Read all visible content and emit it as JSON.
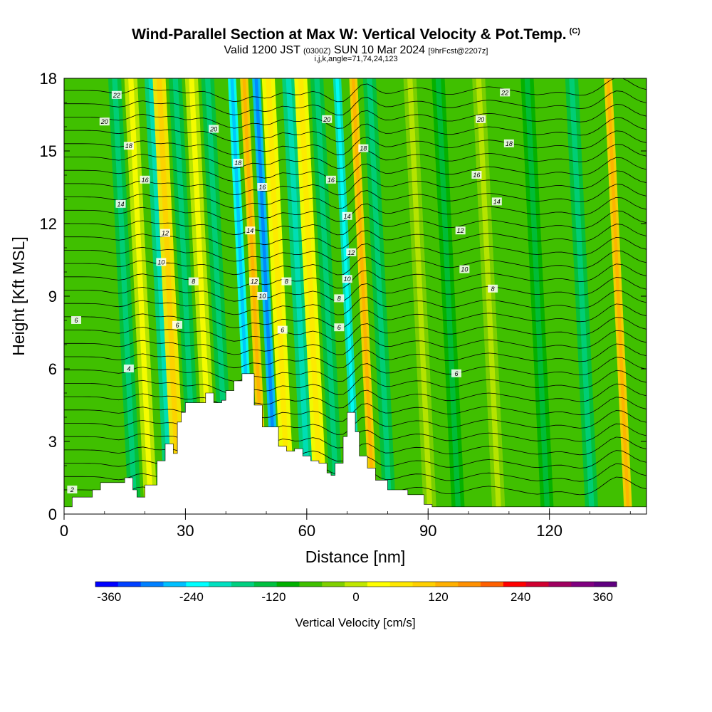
{
  "chart_data": {
    "type": "heatmap",
    "title": "Wind-Parallel Section at Max W: Vertical Velocity & Pot.Temp.",
    "title_mark": "(C)",
    "subtitle_main": "Valid 1200 JST",
    "subtitle_utc": "(0300Z)",
    "subtitle_date": "SUN 10 Mar 2024",
    "subtitle_fcst": "[9hrFcst@2207z]",
    "subsubtitle": "i,j,k,angle=71,74,24,123",
    "xlabel": "Distance [nm]",
    "ylabel": "Height [Kft MSL]",
    "xlim": [
      0,
      144
    ],
    "ylim": [
      0,
      18
    ],
    "xticks": [
      "0",
      "30",
      "60",
      "90",
      "120"
    ],
    "yticks": [
      "0",
      "3",
      "6",
      "9",
      "12",
      "15",
      "18"
    ],
    "colorbar": {
      "label": "Vertical Velocity [cm/s]",
      "min": -380,
      "max": 380,
      "step": 40,
      "tick_labels": [
        "-360",
        "-240",
        "-120",
        "0",
        "120",
        "240",
        "360"
      ],
      "colors": [
        "#0000ff",
        "#0040ff",
        "#0080ff",
        "#00c0ff",
        "#00ffff",
        "#00e0c0",
        "#00d080",
        "#00c040",
        "#00b000",
        "#40c000",
        "#80d000",
        "#c0e800",
        "#ffff00",
        "#ffe800",
        "#ffd000",
        "#ffb000",
        "#ff9000",
        "#ff6000",
        "#ff0000",
        "#d00030",
        "#a00060",
        "#800080",
        "#600080"
      ]
    },
    "vertical_velocity_bands_cms": [
      {
        "x_nm": 15,
        "w": -70
      },
      {
        "x_nm": 19,
        "w": 90
      },
      {
        "x_nm": 24,
        "w": -120
      },
      {
        "x_nm": 26,
        "w": 140
      },
      {
        "x_nm": 30,
        "w": -100
      },
      {
        "x_nm": 34,
        "w": 60
      },
      {
        "x_nm": 38,
        "w": -80
      },
      {
        "x_nm": 44,
        "w": -200
      },
      {
        "x_nm": 47,
        "w": 180
      },
      {
        "x_nm": 50,
        "w": -260
      },
      {
        "x_nm": 53,
        "w": 120
      },
      {
        "x_nm": 58,
        "w": -140
      },
      {
        "x_nm": 61,
        "w": 100
      },
      {
        "x_nm": 65,
        "w": -80
      },
      {
        "x_nm": 70,
        "w": -180
      },
      {
        "x_nm": 74,
        "w": 200
      },
      {
        "x_nm": 78,
        "w": -90
      },
      {
        "x_nm": 88,
        "w": 40
      },
      {
        "x_nm": 95,
        "w": -60
      },
      {
        "x_nm": 105,
        "w": 50
      },
      {
        "x_nm": 117,
        "w": -60
      },
      {
        "x_nm": 128,
        "w": -70
      },
      {
        "x_nm": 137,
        "w": 180
      }
    ],
    "terrain_kft": {
      "x": [
        0,
        2,
        7,
        9,
        11,
        15,
        17,
        18,
        20,
        23,
        25,
        27,
        28,
        29,
        30,
        32,
        35,
        37,
        39,
        40,
        42,
        44,
        45,
        47,
        49,
        53,
        55,
        57,
        59,
        61,
        63,
        65,
        66,
        67,
        69,
        70,
        71,
        72,
        73,
        75,
        77,
        80,
        85,
        89,
        91,
        144
      ],
      "y": [
        0.3,
        0.7,
        1.0,
        1.3,
        1.3,
        1.5,
        1.0,
        0.7,
        1.2,
        2.2,
        2.9,
        2.5,
        3.8,
        4.2,
        4.6,
        4.6,
        5.0,
        4.6,
        4.7,
        5.1,
        5.5,
        5.8,
        5.8,
        4.5,
        3.6,
        2.8,
        2.6,
        2.7,
        2.4,
        2.2,
        2.1,
        1.7,
        1.6,
        2.1,
        3.2,
        4.2,
        4.2,
        3.4,
        2.4,
        1.9,
        1.4,
        1.0,
        0.8,
        0.4,
        0.3,
        0.3
      ]
    },
    "theta_contours": [
      {
        "label": "2",
        "label_x_nm": 2,
        "base_kft": 1.0
      },
      {
        "label": "4",
        "label_x_nm": 16,
        "base_kft": 6.0
      },
      {
        "label": "6",
        "label_x_nm": 3,
        "base_kft": 8.0
      },
      {
        "label": "6",
        "label_x_nm": 28,
        "base_kft": 7.8
      },
      {
        "label": "6",
        "label_x_nm": 54,
        "base_kft": 7.6
      },
      {
        "label": "6",
        "label_x_nm": 68,
        "base_kft": 7.7
      },
      {
        "label": "6",
        "label_x_nm": 97,
        "base_kft": 5.8
      },
      {
        "label": "8",
        "label_x_nm": 32,
        "base_kft": 9.6
      },
      {
        "label": "8",
        "label_x_nm": 55,
        "base_kft": 9.6
      },
      {
        "label": "8",
        "label_x_nm": 68,
        "base_kft": 8.9
      },
      {
        "label": "8",
        "label_x_nm": 106,
        "base_kft": 9.3
      },
      {
        "label": "10",
        "label_x_nm": 24,
        "base_kft": 10.4
      },
      {
        "label": "10",
        "label_x_nm": 49,
        "base_kft": 9.0
      },
      {
        "label": "10",
        "label_x_nm": 70,
        "base_kft": 9.7
      },
      {
        "label": "10",
        "label_x_nm": 99,
        "base_kft": 10.1
      },
      {
        "label": "12",
        "label_x_nm": 25,
        "base_kft": 11.6
      },
      {
        "label": "12",
        "label_x_nm": 47,
        "base_kft": 9.6
      },
      {
        "label": "12",
        "label_x_nm": 71,
        "base_kft": 10.8
      },
      {
        "label": "12",
        "label_x_nm": 98,
        "base_kft": 11.7
      },
      {
        "label": "14",
        "label_x_nm": 14,
        "base_kft": 12.8
      },
      {
        "label": "14",
        "label_x_nm": 46,
        "base_kft": 11.7
      },
      {
        "label": "14",
        "label_x_nm": 70,
        "base_kft": 12.3
      },
      {
        "label": "14",
        "label_x_nm": 107,
        "base_kft": 12.9
      },
      {
        "label": "16",
        "label_x_nm": 20,
        "base_kft": 13.8
      },
      {
        "label": "16",
        "label_x_nm": 49,
        "base_kft": 13.5
      },
      {
        "label": "16",
        "label_x_nm": 66,
        "base_kft": 13.8
      },
      {
        "label": "16",
        "label_x_nm": 102,
        "base_kft": 14.0
      },
      {
        "label": "18",
        "label_x_nm": 16,
        "base_kft": 15.2
      },
      {
        "label": "18",
        "label_x_nm": 43,
        "base_kft": 14.5
      },
      {
        "label": "18",
        "label_x_nm": 74,
        "base_kft": 15.1
      },
      {
        "label": "18",
        "label_x_nm": 110,
        "base_kft": 15.3
      },
      {
        "label": "20",
        "label_x_nm": 10,
        "base_kft": 16.2
      },
      {
        "label": "20",
        "label_x_nm": 37,
        "base_kft": 15.9
      },
      {
        "label": "20",
        "label_x_nm": 65,
        "base_kft": 16.3
      },
      {
        "label": "20",
        "label_x_nm": 103,
        "base_kft": 16.3
      },
      {
        "label": "22",
        "label_x_nm": 13,
        "base_kft": 17.3
      },
      {
        "label": "22",
        "label_x_nm": 109,
        "base_kft": 17.4
      }
    ],
    "grid": false
  }
}
